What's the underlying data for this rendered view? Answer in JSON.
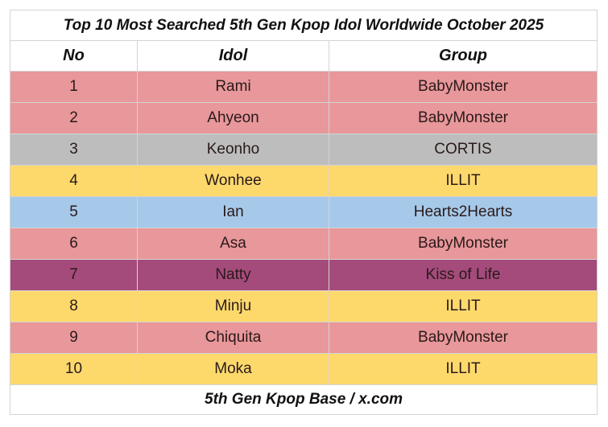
{
  "title": "Top 10 Most Searched 5th Gen Kpop Idol Worldwide October 2025",
  "columns": [
    "No",
    "Idol",
    "Group"
  ],
  "group_colors": {
    "BabyMonster": "#e8979a",
    "CORTIS": "#bdbdbd",
    "ILLIT": "#fdd96c",
    "Hearts2Hearts": "#a6c9e9",
    "Kiss of Life": "#a44b7b"
  },
  "rows": [
    {
      "no": "1",
      "idol": "Rami",
      "group": "BabyMonster"
    },
    {
      "no": "2",
      "idol": "Ahyeon",
      "group": "BabyMonster"
    },
    {
      "no": "3",
      "idol": "Keonho",
      "group": "CORTIS"
    },
    {
      "no": "4",
      "idol": "Wonhee",
      "group": "ILLIT"
    },
    {
      "no": "5",
      "idol": "Ian",
      "group": "Hearts2Hearts"
    },
    {
      "no": "6",
      "idol": "Asa",
      "group": "BabyMonster"
    },
    {
      "no": "7",
      "idol": "Natty",
      "group": "Kiss of Life"
    },
    {
      "no": "8",
      "idol": "Minju",
      "group": "ILLIT"
    },
    {
      "no": "9",
      "idol": "Chiquita",
      "group": "BabyMonster"
    },
    {
      "no": "10",
      "idol": "Moka",
      "group": "ILLIT"
    }
  ],
  "footer": "5th Gen Kpop Base / x.com"
}
